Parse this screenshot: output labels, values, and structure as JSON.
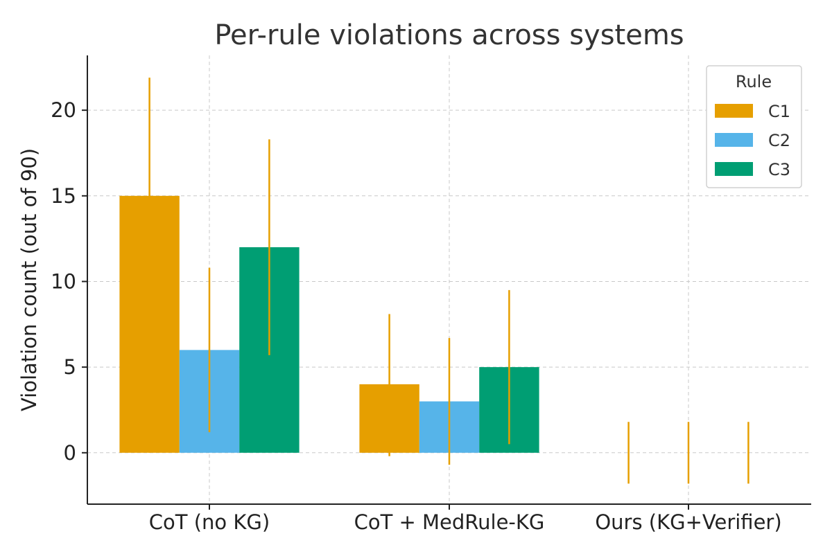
{
  "chart_data": {
    "type": "bar",
    "title": "Per-rule violations across systems",
    "xlabel": "",
    "ylabel": "Violation count (out of 90)",
    "categories": [
      "CoT (no KG)",
      "CoT + MedRule-KG",
      "Ours (KG+Verifier)"
    ],
    "legend_title": "Rule",
    "legend_position": "top-right",
    "grid": true,
    "ylim": [
      -3,
      23.2
    ],
    "yticks": [
      0,
      5,
      10,
      15,
      20
    ],
    "error_bar_color": "#E69F00",
    "series": [
      {
        "name": "C1",
        "color": "#E69F00",
        "values": [
          15,
          4,
          0
        ],
        "err_low": [
          0,
          -0.2,
          -1.8
        ],
        "err_high": [
          21.9,
          8.1,
          1.8
        ]
      },
      {
        "name": "C2",
        "color": "#56B4E9",
        "values": [
          6,
          3,
          0
        ],
        "err_low": [
          1.2,
          -0.7,
          -1.8
        ],
        "err_high": [
          10.8,
          6.7,
          1.8
        ]
      },
      {
        "name": "C3",
        "color": "#009E73",
        "values": [
          12,
          5,
          0
        ],
        "err_low": [
          5.7,
          0.5,
          -1.8
        ],
        "err_high": [
          18.3,
          9.5,
          1.8
        ]
      }
    ]
  }
}
